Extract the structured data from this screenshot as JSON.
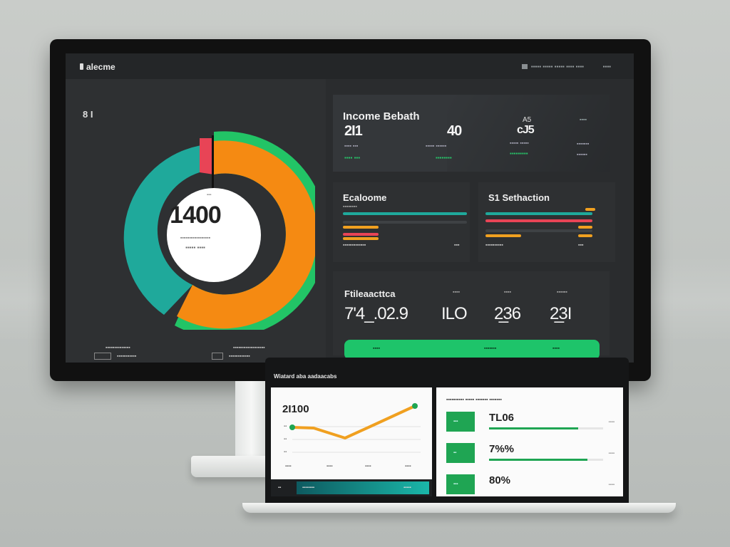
{
  "colors": {
    "teal": "#1fa99b",
    "orange": "#f58a12",
    "green": "#22c466",
    "red": "#e84456",
    "bg": "#2b2d2f"
  },
  "monitor": {
    "brand": "alecme",
    "topnav": "▪▪▪▪▪  ▪▪▪▪▪  ▪▪▪▪▪  ▪▪▪▪  ▪▪▪▪",
    "topright": "▪▪▪▪",
    "left_icon": "8 I",
    "donut": {
      "value": "1400",
      "corner": "▪▪▪",
      "sub1": "▪▪▪▪▪▪▪▪▪▪▪▪▪▪▪▪▪",
      "sub2": "▪▪▪▪▪  ▪▪▪▪"
    },
    "legend_a": [
      "▪▪▪▪▪▪▪▪▪▪▪▪▪▪",
      "▪▪▪▪▪▪▪▪▪▪▪",
      "▪▪▪▪▪▪▪▪▪▪▪  ▪▪▪▪"
    ],
    "legend_b": [
      "▪▪▪▪▪▪▪▪▪▪▪▪▪▪▪▪▪▪",
      "▪▪▪▪▪▪▪▪▪▪▪▪",
      "▪▪▪▪▪▪▪▪▪▪  ▪▪▪▪"
    ],
    "stats": {
      "title": "Income Bebath",
      "col1_big": "2I1",
      "col1_small": "▪▪▪▪ ▪▪▪",
      "col1_green": "▪▪▪▪ ▪▪▪",
      "col2_big": "40",
      "col2_small": "▪▪▪▪▪ ▪▪▪▪▪▪",
      "col2_green": "▪▪▪▪▪▪▪▪",
      "col3_big": "cJ5",
      "col3_prefix": "A5",
      "col3_small": "▪▪▪▪▪ ▪▪▪▪▪",
      "col3_green": "▪▪▪▪▪▪▪▪▪",
      "col4_hdr": "▪▪▪▪",
      "col4_small": "▪▪▪▪▪▪▪",
      "col4_green": "▪▪▪▪▪▪"
    },
    "mid_left": {
      "title": "Ecaloome",
      "sub": "▪▪▪▪▪▪▪▪",
      "foot_l": "▪▪▪▪▪▪▪▪▪▪▪▪▪",
      "foot_r": "▪▪▪"
    },
    "mid_right": {
      "title": "S1 Sethaction",
      "foot_l": "▪▪▪▪▪▪▪▪▪▪",
      "foot_r": "▪▪▪"
    },
    "bottom": {
      "title": "Ftileaacttca",
      "labels": [
        "▪▪▪▪",
        "▪▪▪▪",
        "▪▪▪▪▪▪"
      ],
      "values": [
        "7'4_.02.9",
        "ILO",
        "2̲36",
        "2̲3I"
      ],
      "green_labels": [
        "▪▪▪▪",
        "▪▪▪▪▪▪▪",
        "▪▪▪▪"
      ]
    }
  },
  "laptop": {
    "header": "Wiatard aba aadaacabs",
    "chart": {
      "value": "2I100",
      "y_labels": [
        "▪▪",
        "▪▪",
        "▪▪"
      ],
      "x_labels": [
        "▪▪▪▪",
        "▪▪▪▪",
        "▪▪▪▪",
        "▪▪▪▪"
      ],
      "foot_left": "▪▪",
      "foot_mid": "▪▪▪▪▪▪▪▪",
      "foot_right": "▪▪▪▪▪"
    },
    "list": {
      "header": "▪▪▪▪▪▪▪▪▪▪ ▪▪▪▪▪ ▪▪▪▪▪▪▪ ▪▪▪▪▪▪▪",
      "rows": [
        {
          "badge": "▪▪▪",
          "value": "TL06",
          "right": "▪▪▪▪",
          "fill": 0.78
        },
        {
          "badge": "▪▪",
          "value": "7%%",
          "right": "▪▪▪▪",
          "fill": 0.86
        },
        {
          "badge": "▪▪▪",
          "value": "80%",
          "right": "▪▪▪▪",
          "fill": 0.0
        }
      ]
    }
  }
}
